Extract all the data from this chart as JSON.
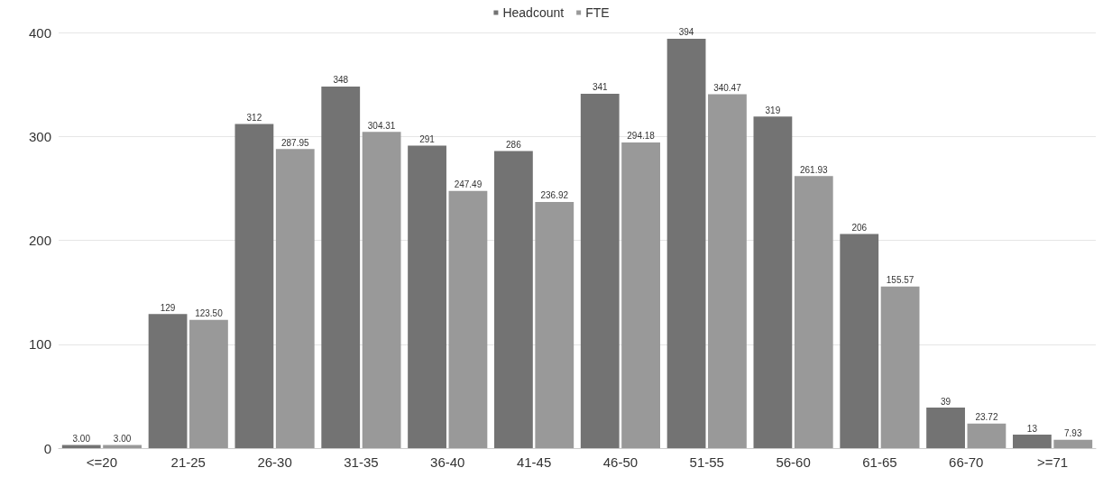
{
  "chart_data": {
    "type": "bar",
    "categories": [
      "<=20",
      "21-25",
      "26-30",
      "31-35",
      "36-40",
      "41-45",
      "46-50",
      "51-55",
      "56-60",
      "61-65",
      "66-70",
      ">=71"
    ],
    "series": [
      {
        "name": "Headcount",
        "color": "#737373",
        "values": [
          3,
          129,
          312,
          348,
          291,
          286,
          341,
          394,
          319,
          206,
          39,
          13
        ],
        "value_labels": [
          "3.00",
          "129",
          "312",
          "348",
          "291",
          "286",
          "341",
          "394",
          "319",
          "206",
          "39",
          "13"
        ]
      },
      {
        "name": "FTE",
        "color": "#999999",
        "values": [
          3,
          123.5,
          287.95,
          304.31,
          247.49,
          236.92,
          294.18,
          340.47,
          261.93,
          155.57,
          23.72,
          7.93
        ],
        "value_labels": [
          "3.00",
          "123.50",
          "287.95",
          "304.31",
          "247.49",
          "236.92",
          "294.18",
          "340.47",
          "261.93",
          "155.57",
          "23.72",
          "7.93"
        ]
      }
    ],
    "ylim": [
      0,
      400
    ],
    "yticks": [
      0,
      100,
      200,
      300,
      400
    ],
    "grid": "y",
    "legend": "top"
  }
}
